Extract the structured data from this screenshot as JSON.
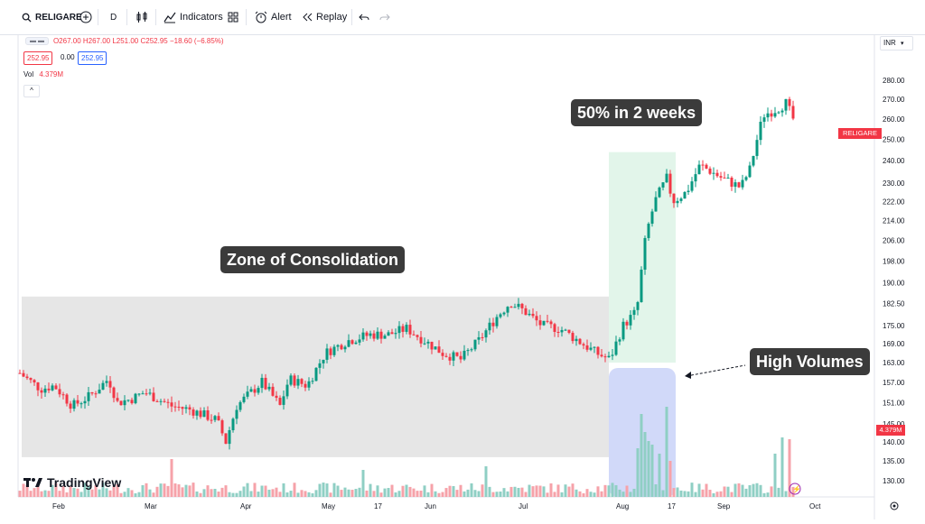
{
  "toolbar": {
    "symbol": "RELIGARE",
    "interval": "D",
    "indicators_label": "Indicators",
    "alert_label": "Alert",
    "replay_label": "Replay"
  },
  "legend": {
    "ohlc": "O267.00 H267.00 L251.00 C252.95 −18.60 (−6.85%)",
    "bid": "252.95",
    "spread": "0.00",
    "ask": "252.95",
    "vol_label": "Vol",
    "vol_value": "4.379M"
  },
  "currency": "INR",
  "last_price_badge": {
    "symbol": "RELIGARE",
    "price": "252.95"
  },
  "vol_badge": "4.379M",
  "annotations": {
    "consolidation": "Zone of Consolidation",
    "rally": "50% in 2 weeks",
    "volume": "High Volumes"
  },
  "brand": "TradingView",
  "colors": {
    "up": "#089981",
    "down": "#f23645",
    "up_vol": "#8fcfc4",
    "down_vol": "#f6a2a9"
  },
  "chart_data": {
    "type": "candlestick",
    "x_ticks": [
      "Feb",
      "Mar",
      "Apr",
      "May",
      "17",
      "Jun",
      "Jul",
      "Aug",
      "17",
      "Sep",
      "Oct"
    ],
    "y_ticks": [
      280.0,
      270.0,
      260.0,
      250.0,
      240.0,
      230.0,
      222.0,
      214.0,
      206.0,
      198.0,
      190.0,
      182.5,
      175.0,
      169.0,
      163.0,
      157.0,
      151.0,
      145.0,
      140.0,
      135.0,
      130.0
    ],
    "y_scale": "log",
    "last_close": 252.95,
    "last_volume": "4.379M",
    "zones": [
      {
        "label": "Zone of Consolidation",
        "price_low": 136,
        "price_high": 185,
        "from": "Jan",
        "to": "Jul"
      },
      {
        "label": "50% in 2 weeks",
        "price_low": 163,
        "price_high": 244,
        "from": "Jul",
        "to": "Aug"
      }
    ]
  }
}
